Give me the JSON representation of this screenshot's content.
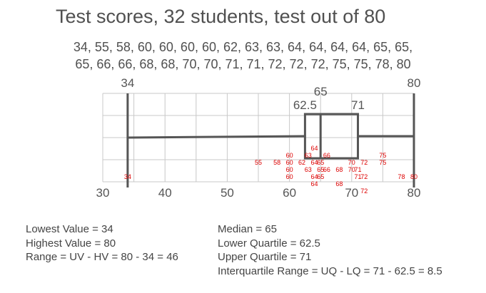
{
  "title": "Test scores, 32 students, test out of 80",
  "scores_lines": [
    "34, 55, 58, 60, 60, 60, 60, 62, 63, 63, 64, 64, 64, 64, 65, 65,",
    "65, 66, 66, 68, 68, 70, 70, 71, 71, 72, 72, 72, 75, 75, 78, 80"
  ],
  "chart_data": {
    "type": "box",
    "values": [
      34,
      55,
      58,
      60,
      60,
      60,
      60,
      62,
      63,
      63,
      64,
      64,
      64,
      64,
      65,
      65,
      65,
      66,
      66,
      68,
      68,
      70,
      70,
      71,
      71,
      72,
      72,
      72,
      75,
      75,
      78,
      80
    ],
    "five_number_summary": {
      "min": 34,
      "q1": 62.5,
      "median": 65,
      "q3": 71,
      "max": 80
    },
    "summary_labels": {
      "min": "34",
      "q1": "62.5",
      "median": "65",
      "q3": "71",
      "max": "80"
    },
    "axis": {
      "xlim": [
        30,
        80
      ],
      "ticks": [
        30,
        40,
        50,
        60,
        70,
        80
      ],
      "tick_labels": [
        "30",
        "40",
        "50",
        "60",
        "70",
        "80"
      ]
    },
    "grid": true,
    "colors": {
      "box": "#555555",
      "points": "#dd0000",
      "grid": "#c8c8c8"
    },
    "points": [
      {
        "label": "34",
        "value": 34,
        "row": 0
      },
      {
        "label": "55",
        "value": 55,
        "row": 2
      },
      {
        "label": "58",
        "value": 58,
        "row": 2
      },
      {
        "label": "60",
        "value": 60,
        "row": 0
      },
      {
        "label": "60",
        "value": 60,
        "row": 1
      },
      {
        "label": "60",
        "value": 60,
        "row": 2
      },
      {
        "label": "60",
        "value": 60,
        "row": 3
      },
      {
        "label": "62",
        "value": 62,
        "row": 2
      },
      {
        "label": "63",
        "value": 63,
        "row": 1
      },
      {
        "label": "63",
        "value": 63,
        "row": 3
      },
      {
        "label": "64",
        "value": 64,
        "row": 4
      },
      {
        "label": "64",
        "value": 64,
        "row": 2
      },
      {
        "label": "64",
        "value": 64,
        "row": 0
      },
      {
        "label": "64",
        "value": 64,
        "row": -1
      },
      {
        "label": "65",
        "value": 65,
        "row": 2
      },
      {
        "label": "65",
        "value": 65,
        "row": 0
      },
      {
        "label": "65",
        "value": 65,
        "row": 1
      },
      {
        "label": "66",
        "value": 66,
        "row": 3
      },
      {
        "label": "66",
        "value": 66,
        "row": 1
      },
      {
        "label": "68",
        "value": 68,
        "row": 1
      },
      {
        "label": "68",
        "value": 68,
        "row": -1
      },
      {
        "label": "70",
        "value": 70,
        "row": 2
      },
      {
        "label": "70",
        "value": 70,
        "row": 1
      },
      {
        "label": "71",
        "value": 71,
        "row": 1
      },
      {
        "label": "71",
        "value": 71,
        "row": 0
      },
      {
        "label": "72",
        "value": 72,
        "row": 2
      },
      {
        "label": "72",
        "value": 72,
        "row": 0
      },
      {
        "label": "72",
        "value": 72,
        "row": -2
      },
      {
        "label": "75",
        "value": 75,
        "row": 3
      },
      {
        "label": "75",
        "value": 75,
        "row": 2
      },
      {
        "label": "78",
        "value": 78,
        "row": 0
      },
      {
        "label": "80",
        "value": 80,
        "row": 0
      }
    ]
  },
  "stats": {
    "left": [
      "Lowest Value = 34",
      "Highest Value = 80",
      "Range = UV - HV = 80 - 34 = 46"
    ],
    "right": [
      "Median = 65",
      "Lower Quartile = 62.5",
      "Upper Quartile = 71",
      "Interquartile Range = UQ - LQ = 71 - 62.5 = 8.5"
    ]
  }
}
